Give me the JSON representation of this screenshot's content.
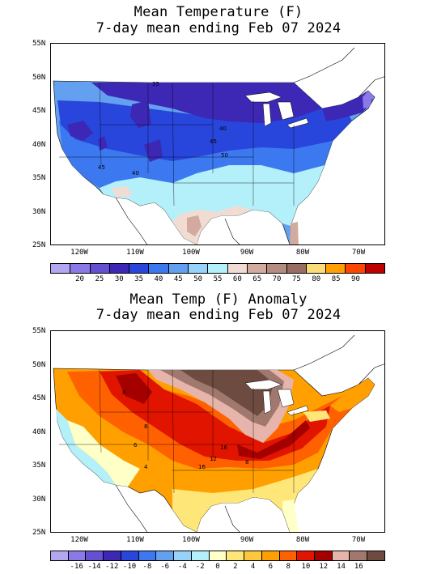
{
  "top_panel": {
    "title_line1": "Mean Temperature (F)",
    "title_line2": "7-day mean ending Feb 07 2024",
    "lat_labels": [
      "55N",
      "50N",
      "45N",
      "40N",
      "35N",
      "30N",
      "25N"
    ],
    "lon_labels": [
      "120W",
      "110W",
      "100W",
      "90W",
      "80W",
      "70W"
    ],
    "contour_labels": [
      "35",
      "40",
      "45",
      "50",
      "40",
      "45"
    ],
    "colorbar": {
      "colors": [
        "#b4a7f0",
        "#8c78e6",
        "#6450d2",
        "#3c28b4",
        "#2846dc",
        "#3c78f0",
        "#64a0f0",
        "#96d2fa",
        "#b4f0fa",
        "#f0dcd2",
        "#d2aaa0",
        "#b48c82",
        "#966e64",
        "#fadc78",
        "#ffa000",
        "#ff4600",
        "#be0000"
      ],
      "labels": [
        "20",
        "25",
        "30",
        "35",
        "40",
        "45",
        "50",
        "55",
        "60",
        "65",
        "70",
        "75",
        "80",
        "85",
        "90"
      ]
    }
  },
  "bottom_panel": {
    "title_line1": "Mean Temp (F) Anomaly",
    "title_line2": "7-day mean ending Feb 07 2024",
    "lat_labels": [
      "55N",
      "50N",
      "45N",
      "40N",
      "35N",
      "30N",
      "25N"
    ],
    "lon_labels": [
      "120W",
      "110W",
      "100W",
      "90W",
      "80W",
      "70W"
    ],
    "contour_labels": [
      "8",
      "8",
      "6",
      "4",
      "12",
      "16",
      "16",
      "8"
    ],
    "colorbar": {
      "colors": [
        "#b4a7f0",
        "#8c78e6",
        "#6450d2",
        "#3c28b4",
        "#2846dc",
        "#3c78f0",
        "#64a0f0",
        "#96d2fa",
        "#b4f0fa",
        "#ffffc8",
        "#ffe678",
        "#ffc83c",
        "#ffa000",
        "#ff6000",
        "#e11400",
        "#a50000",
        "#e6b4aa",
        "#a0786e",
        "#6e4b41"
      ],
      "labels": [
        "-16",
        "-14",
        "-12",
        "-10",
        "-8",
        "-6",
        "-4",
        "-2",
        "0",
        "2",
        "4",
        "6",
        "8",
        "10",
        "12",
        "14",
        "16"
      ]
    }
  }
}
